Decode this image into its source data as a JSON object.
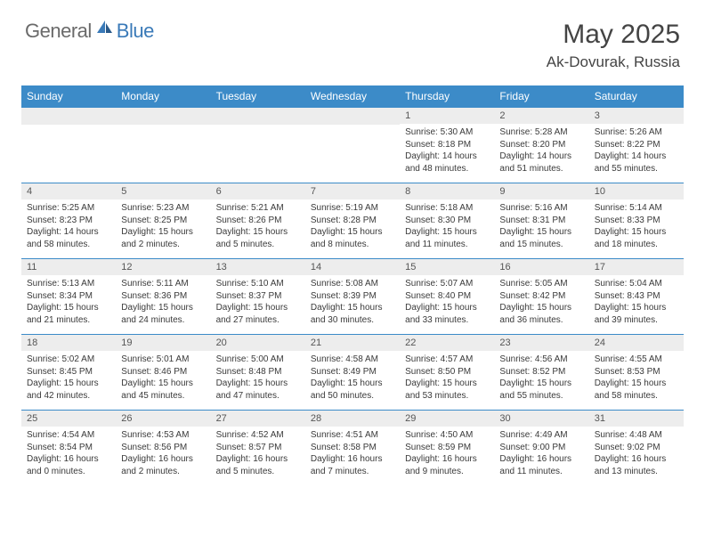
{
  "logo": {
    "textGeneral": "General",
    "textBlue": "Blue"
  },
  "title": "May 2025",
  "location": "Ak-Dovurak, Russia",
  "colors": {
    "headerBar": "#3c8bc8",
    "dayNumberBg": "#ededed",
    "textDark": "#333333",
    "logoGray": "#6a6a6a",
    "logoBlue": "#3a7ab8"
  },
  "weekdays": [
    "Sunday",
    "Monday",
    "Tuesday",
    "Wednesday",
    "Thursday",
    "Friday",
    "Saturday"
  ],
  "weeks": [
    [
      {
        "n": "",
        "sunrise": "",
        "sunset": "",
        "daylight": ""
      },
      {
        "n": "",
        "sunrise": "",
        "sunset": "",
        "daylight": ""
      },
      {
        "n": "",
        "sunrise": "",
        "sunset": "",
        "daylight": ""
      },
      {
        "n": "",
        "sunrise": "",
        "sunset": "",
        "daylight": ""
      },
      {
        "n": "1",
        "sunrise": "Sunrise: 5:30 AM",
        "sunset": "Sunset: 8:18 PM",
        "daylight": "Daylight: 14 hours and 48 minutes."
      },
      {
        "n": "2",
        "sunrise": "Sunrise: 5:28 AM",
        "sunset": "Sunset: 8:20 PM",
        "daylight": "Daylight: 14 hours and 51 minutes."
      },
      {
        "n": "3",
        "sunrise": "Sunrise: 5:26 AM",
        "sunset": "Sunset: 8:22 PM",
        "daylight": "Daylight: 14 hours and 55 minutes."
      }
    ],
    [
      {
        "n": "4",
        "sunrise": "Sunrise: 5:25 AM",
        "sunset": "Sunset: 8:23 PM",
        "daylight": "Daylight: 14 hours and 58 minutes."
      },
      {
        "n": "5",
        "sunrise": "Sunrise: 5:23 AM",
        "sunset": "Sunset: 8:25 PM",
        "daylight": "Daylight: 15 hours and 2 minutes."
      },
      {
        "n": "6",
        "sunrise": "Sunrise: 5:21 AM",
        "sunset": "Sunset: 8:26 PM",
        "daylight": "Daylight: 15 hours and 5 minutes."
      },
      {
        "n": "7",
        "sunrise": "Sunrise: 5:19 AM",
        "sunset": "Sunset: 8:28 PM",
        "daylight": "Daylight: 15 hours and 8 minutes."
      },
      {
        "n": "8",
        "sunrise": "Sunrise: 5:18 AM",
        "sunset": "Sunset: 8:30 PM",
        "daylight": "Daylight: 15 hours and 11 minutes."
      },
      {
        "n": "9",
        "sunrise": "Sunrise: 5:16 AM",
        "sunset": "Sunset: 8:31 PM",
        "daylight": "Daylight: 15 hours and 15 minutes."
      },
      {
        "n": "10",
        "sunrise": "Sunrise: 5:14 AM",
        "sunset": "Sunset: 8:33 PM",
        "daylight": "Daylight: 15 hours and 18 minutes."
      }
    ],
    [
      {
        "n": "11",
        "sunrise": "Sunrise: 5:13 AM",
        "sunset": "Sunset: 8:34 PM",
        "daylight": "Daylight: 15 hours and 21 minutes."
      },
      {
        "n": "12",
        "sunrise": "Sunrise: 5:11 AM",
        "sunset": "Sunset: 8:36 PM",
        "daylight": "Daylight: 15 hours and 24 minutes."
      },
      {
        "n": "13",
        "sunrise": "Sunrise: 5:10 AM",
        "sunset": "Sunset: 8:37 PM",
        "daylight": "Daylight: 15 hours and 27 minutes."
      },
      {
        "n": "14",
        "sunrise": "Sunrise: 5:08 AM",
        "sunset": "Sunset: 8:39 PM",
        "daylight": "Daylight: 15 hours and 30 minutes."
      },
      {
        "n": "15",
        "sunrise": "Sunrise: 5:07 AM",
        "sunset": "Sunset: 8:40 PM",
        "daylight": "Daylight: 15 hours and 33 minutes."
      },
      {
        "n": "16",
        "sunrise": "Sunrise: 5:05 AM",
        "sunset": "Sunset: 8:42 PM",
        "daylight": "Daylight: 15 hours and 36 minutes."
      },
      {
        "n": "17",
        "sunrise": "Sunrise: 5:04 AM",
        "sunset": "Sunset: 8:43 PM",
        "daylight": "Daylight: 15 hours and 39 minutes."
      }
    ],
    [
      {
        "n": "18",
        "sunrise": "Sunrise: 5:02 AM",
        "sunset": "Sunset: 8:45 PM",
        "daylight": "Daylight: 15 hours and 42 minutes."
      },
      {
        "n": "19",
        "sunrise": "Sunrise: 5:01 AM",
        "sunset": "Sunset: 8:46 PM",
        "daylight": "Daylight: 15 hours and 45 minutes."
      },
      {
        "n": "20",
        "sunrise": "Sunrise: 5:00 AM",
        "sunset": "Sunset: 8:48 PM",
        "daylight": "Daylight: 15 hours and 47 minutes."
      },
      {
        "n": "21",
        "sunrise": "Sunrise: 4:58 AM",
        "sunset": "Sunset: 8:49 PM",
        "daylight": "Daylight: 15 hours and 50 minutes."
      },
      {
        "n": "22",
        "sunrise": "Sunrise: 4:57 AM",
        "sunset": "Sunset: 8:50 PM",
        "daylight": "Daylight: 15 hours and 53 minutes."
      },
      {
        "n": "23",
        "sunrise": "Sunrise: 4:56 AM",
        "sunset": "Sunset: 8:52 PM",
        "daylight": "Daylight: 15 hours and 55 minutes."
      },
      {
        "n": "24",
        "sunrise": "Sunrise: 4:55 AM",
        "sunset": "Sunset: 8:53 PM",
        "daylight": "Daylight: 15 hours and 58 minutes."
      }
    ],
    [
      {
        "n": "25",
        "sunrise": "Sunrise: 4:54 AM",
        "sunset": "Sunset: 8:54 PM",
        "daylight": "Daylight: 16 hours and 0 minutes."
      },
      {
        "n": "26",
        "sunrise": "Sunrise: 4:53 AM",
        "sunset": "Sunset: 8:56 PM",
        "daylight": "Daylight: 16 hours and 2 minutes."
      },
      {
        "n": "27",
        "sunrise": "Sunrise: 4:52 AM",
        "sunset": "Sunset: 8:57 PM",
        "daylight": "Daylight: 16 hours and 5 minutes."
      },
      {
        "n": "28",
        "sunrise": "Sunrise: 4:51 AM",
        "sunset": "Sunset: 8:58 PM",
        "daylight": "Daylight: 16 hours and 7 minutes."
      },
      {
        "n": "29",
        "sunrise": "Sunrise: 4:50 AM",
        "sunset": "Sunset: 8:59 PM",
        "daylight": "Daylight: 16 hours and 9 minutes."
      },
      {
        "n": "30",
        "sunrise": "Sunrise: 4:49 AM",
        "sunset": "Sunset: 9:00 PM",
        "daylight": "Daylight: 16 hours and 11 minutes."
      },
      {
        "n": "31",
        "sunrise": "Sunrise: 4:48 AM",
        "sunset": "Sunset: 9:02 PM",
        "daylight": "Daylight: 16 hours and 13 minutes."
      }
    ]
  ]
}
